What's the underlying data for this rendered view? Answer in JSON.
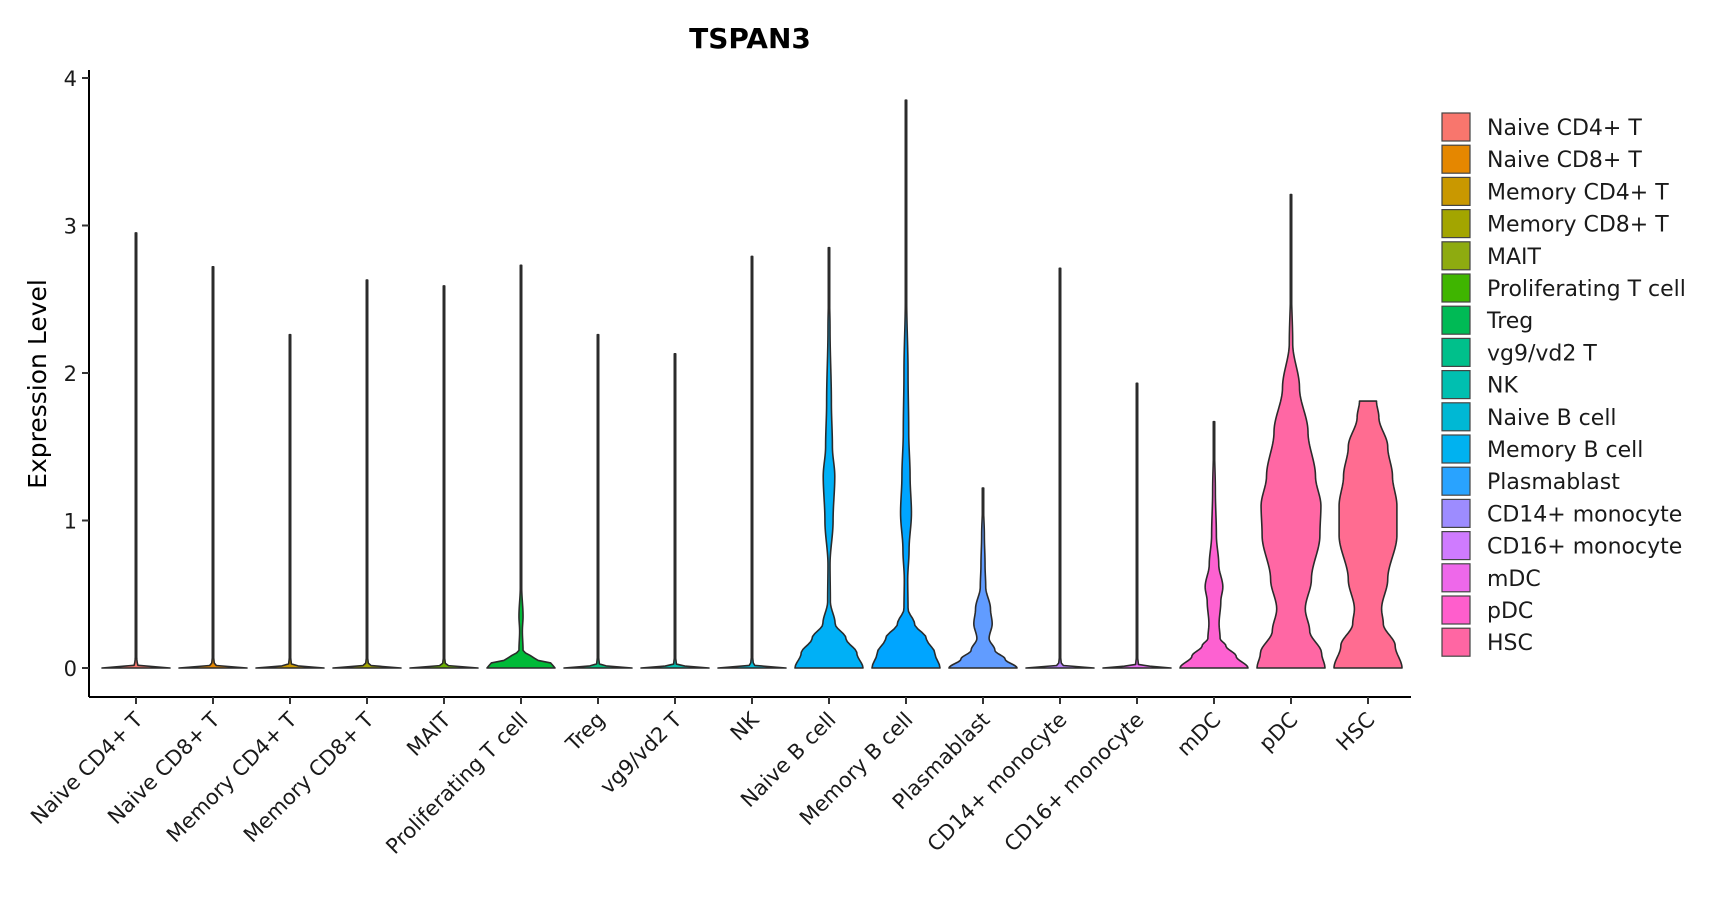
{
  "chart_data": {
    "type": "violin",
    "title": "TSPAN3",
    "xlabel": "",
    "ylabel": "Expression Level",
    "ylim": [
      -0.18,
      4.05
    ],
    "yticks": [
      0,
      1,
      2,
      3,
      4
    ],
    "legend_position": "right",
    "grid": false,
    "categories": [
      "Naive CD4+ T",
      "Naive CD8+ T",
      "Memory CD4+ T",
      "Memory CD8+ T",
      "MAIT",
      "Proliferating T cell",
      "Treg",
      "vg9/vd2 T",
      "NK",
      "Naive B cell",
      "Memory B cell",
      "Plasmablast",
      "CD14+ monocyte",
      "CD16+ monocyte",
      "mDC",
      "pDC",
      "HSC"
    ],
    "colors": [
      "#F8766D",
      "#E58700",
      "#C99800",
      "#A3A500",
      "#6BB100",
      "#00BA38",
      "#00BF7D",
      "#00C0AF",
      "#00BCD8",
      "#00B0F6",
      "#00A5FF",
      "#619CFF",
      "#B983FF",
      "#E76BF3",
      "#FD61D1",
      "#FF67A4",
      "#FF6C91"
    ],
    "legend_colors": [
      "#F8766D",
      "#E58700",
      "#C99800",
      "#A3A500",
      "#8EAB10",
      "#3FB500",
      "#00BA55",
      "#00C08B",
      "#00BFB0",
      "#00B8D4",
      "#00B2F0",
      "#29A3FF",
      "#9D8CFF",
      "#CF7BFF",
      "#EE68EA",
      "#FF5ECC",
      "#FF66A3"
    ],
    "max_values": [
      2.95,
      2.72,
      2.26,
      2.63,
      2.59,
      2.73,
      2.26,
      2.13,
      2.79,
      2.85,
      3.85,
      1.22,
      2.71,
      1.93,
      1.67,
      3.21,
      1.81
    ],
    "density_profiles": [
      [
        [
          0,
          1
        ],
        [
          0.02,
          0.04
        ],
        [
          0.1,
          0.005
        ],
        [
          2.95,
          0.002
        ]
      ],
      [
        [
          0,
          1
        ],
        [
          0.02,
          0.04
        ],
        [
          0.1,
          0.005
        ],
        [
          2.72,
          0.002
        ]
      ],
      [
        [
          0,
          1
        ],
        [
          0.02,
          0.04
        ],
        [
          0.1,
          0.005
        ],
        [
          2.26,
          0.002
        ]
      ],
      [
        [
          0,
          1
        ],
        [
          0.02,
          0.04
        ],
        [
          0.1,
          0.005
        ],
        [
          2.63,
          0.002
        ]
      ],
      [
        [
          0,
          1
        ],
        [
          0.02,
          0.04
        ],
        [
          0.1,
          0.005
        ],
        [
          2.59,
          0.002
        ]
      ],
      [
        [
          0,
          1
        ],
        [
          0.03,
          0.9
        ],
        [
          0.06,
          0.4
        ],
        [
          0.12,
          0.06
        ],
        [
          0.25,
          0.04
        ],
        [
          0.35,
          0.06
        ],
        [
          0.55,
          0.02
        ],
        [
          0.9,
          0.01
        ],
        [
          2.73,
          0.003
        ]
      ],
      [
        [
          0,
          1
        ],
        [
          0.02,
          0.04
        ],
        [
          0.1,
          0.005
        ],
        [
          2.26,
          0.002
        ]
      ],
      [
        [
          0,
          1
        ],
        [
          0.02,
          0.04
        ],
        [
          0.1,
          0.005
        ],
        [
          2.13,
          0.002
        ]
      ],
      [
        [
          0,
          1
        ],
        [
          0.02,
          0.04
        ],
        [
          0.1,
          0.005
        ],
        [
          2.79,
          0.002
        ]
      ],
      [
        [
          0,
          1
        ],
        [
          0.1,
          0.82
        ],
        [
          0.2,
          0.5
        ],
        [
          0.3,
          0.18
        ],
        [
          0.45,
          0.04
        ],
        [
          0.7,
          0.03
        ],
        [
          1.0,
          0.12
        ],
        [
          1.3,
          0.17
        ],
        [
          1.5,
          0.1
        ],
        [
          1.8,
          0.07
        ],
        [
          2.3,
          0.03
        ],
        [
          2.6,
          0.008
        ],
        [
          2.85,
          0.003
        ]
      ],
      [
        [
          0,
          1
        ],
        [
          0.1,
          0.85
        ],
        [
          0.2,
          0.6
        ],
        [
          0.3,
          0.25
        ],
        [
          0.4,
          0.06
        ],
        [
          0.6,
          0.05
        ],
        [
          0.8,
          0.09
        ],
        [
          1.05,
          0.16
        ],
        [
          1.3,
          0.12
        ],
        [
          1.6,
          0.08
        ],
        [
          2.0,
          0.06
        ],
        [
          2.5,
          0.02
        ],
        [
          3.0,
          0.006
        ],
        [
          3.85,
          0.003
        ]
      ],
      [
        [
          0,
          1
        ],
        [
          0.06,
          0.65
        ],
        [
          0.12,
          0.35
        ],
        [
          0.2,
          0.18
        ],
        [
          0.3,
          0.27
        ],
        [
          0.4,
          0.22
        ],
        [
          0.55,
          0.08
        ],
        [
          0.7,
          0.06
        ],
        [
          0.9,
          0.04
        ],
        [
          1.1,
          0.015
        ],
        [
          1.22,
          0.005
        ]
      ],
      [
        [
          0,
          1
        ],
        [
          0.02,
          0.04
        ],
        [
          0.1,
          0.005
        ],
        [
          2.71,
          0.002
        ]
      ],
      [
        [
          0,
          1
        ],
        [
          0.02,
          0.04
        ],
        [
          0.1,
          0.005
        ],
        [
          1.93,
          0.002
        ]
      ],
      [
        [
          0,
          1
        ],
        [
          0.08,
          0.65
        ],
        [
          0.15,
          0.35
        ],
        [
          0.2,
          0.18
        ],
        [
          0.3,
          0.15
        ],
        [
          0.45,
          0.2
        ],
        [
          0.55,
          0.26
        ],
        [
          0.7,
          0.14
        ],
        [
          0.9,
          0.07
        ],
        [
          1.2,
          0.04
        ],
        [
          1.5,
          0.015
        ],
        [
          1.67,
          0.005
        ]
      ],
      [
        [
          0,
          1
        ],
        [
          0.1,
          0.9
        ],
        [
          0.25,
          0.55
        ],
        [
          0.4,
          0.42
        ],
        [
          0.6,
          0.6
        ],
        [
          0.9,
          0.85
        ],
        [
          1.1,
          0.88
        ],
        [
          1.3,
          0.72
        ],
        [
          1.6,
          0.5
        ],
        [
          1.9,
          0.25
        ],
        [
          2.2,
          0.05
        ],
        [
          2.6,
          0.01
        ],
        [
          3.21,
          0.005
        ]
      ],
      [
        [
          0,
          1
        ],
        [
          0.15,
          0.8
        ],
        [
          0.3,
          0.45
        ],
        [
          0.4,
          0.4
        ],
        [
          0.6,
          0.58
        ],
        [
          0.9,
          0.85
        ],
        [
          1.1,
          0.85
        ],
        [
          1.3,
          0.72
        ],
        [
          1.5,
          0.58
        ],
        [
          1.7,
          0.32
        ],
        [
          1.81,
          0.25
        ]
      ]
    ]
  }
}
